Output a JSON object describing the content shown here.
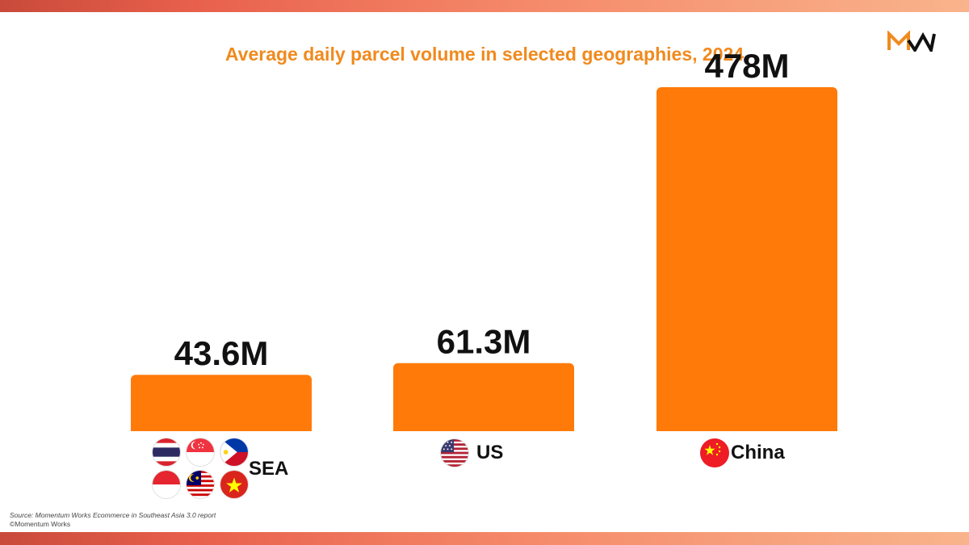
{
  "title": "Average daily parcel volume in selected geographies, 2024",
  "logo": {
    "text": "MW",
    "name": "Momentum Works"
  },
  "colors": {
    "bar": "#ff7a08",
    "title": "#f08a1e",
    "value_label": "#111111",
    "band_start": "#c94a3a",
    "band_end": "#f9b48c"
  },
  "chart_data": {
    "type": "bar",
    "title": "Average daily parcel volume in selected geographies, 2024",
    "categories": [
      "SEA",
      "US",
      "China"
    ],
    "values": [
      43.6,
      61.3,
      478
    ],
    "value_labels": [
      "43.6M",
      "61.3M",
      "478M"
    ],
    "unit": "M",
    "ylim": [
      0,
      478
    ],
    "grid": false,
    "legend": "none"
  },
  "categories": {
    "sea": {
      "label": "SEA",
      "flags": [
        "thailand-flag-icon",
        "singapore-flag-icon",
        "philippines-flag-icon",
        "indonesia-flag-icon",
        "malaysia-flag-icon",
        "vietnam-flag-icon"
      ]
    },
    "us": {
      "label": "US",
      "flag": "us-flag-icon"
    },
    "china": {
      "label": "China",
      "flag": "china-flag-icon"
    }
  },
  "source": {
    "text": "Source: Momentum Works Ecommerce in Southeast Asia 3.0 report",
    "copyright": "©Momentum Works"
  }
}
